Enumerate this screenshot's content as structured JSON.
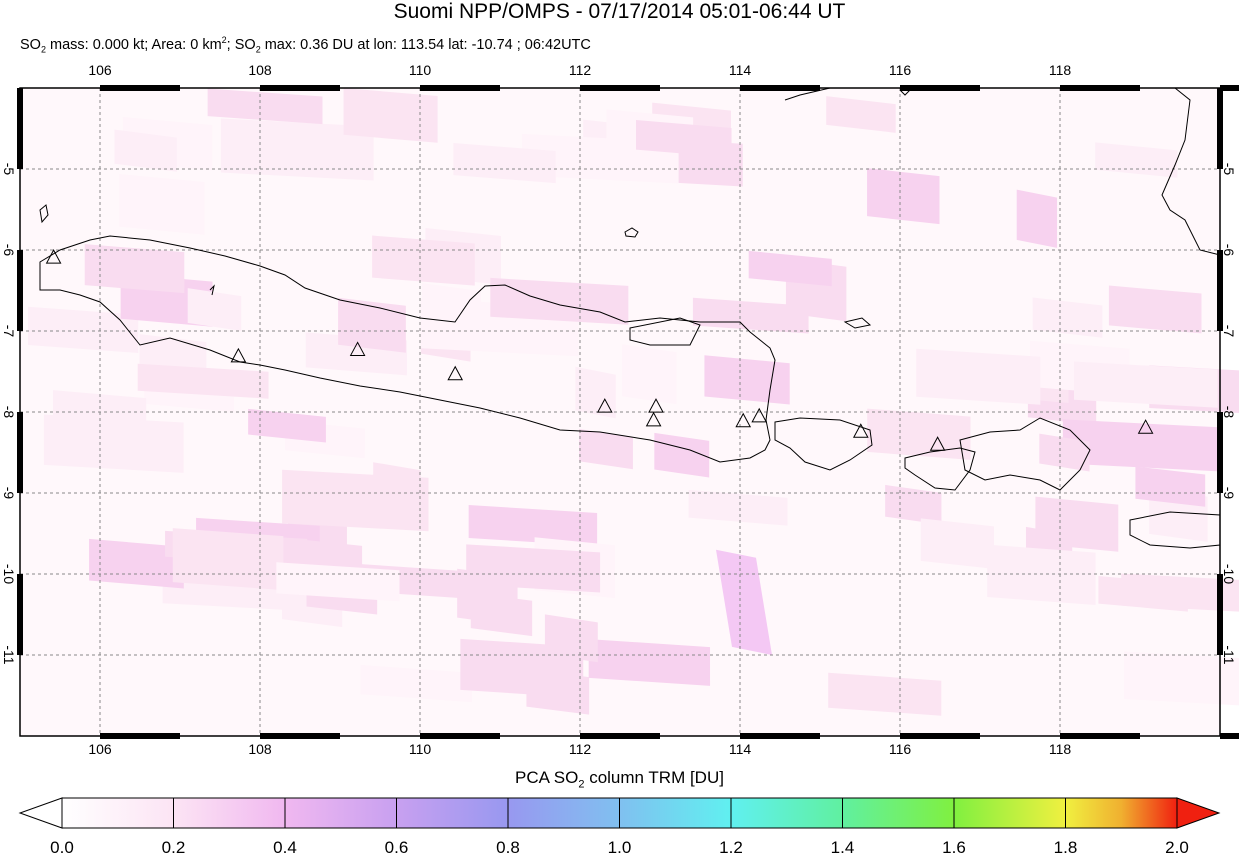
{
  "header": {
    "title": "Suomi NPP/OMPS - 07/17/2014 05:01-06:44 UT",
    "stats": {
      "so2_mass_label": "SO",
      "so2_mass_text": " mass: 0.000 kt; Area: 0 km",
      "area_text": "; SO",
      "max_text": " max: 0.36 DU at lon: 113.54 lat: -10.74 ; 06:42UTC"
    }
  },
  "map": {
    "lon_ticks": [
      "106",
      "108",
      "110",
      "112",
      "114",
      "116",
      "118"
    ],
    "lat_ticks": [
      "-5",
      "-6",
      "-7",
      "-8",
      "-9",
      "-10",
      "-11"
    ],
    "lon_range": [
      105,
      120
    ],
    "lat_range": [
      -12,
      -4
    ],
    "volcanoes": [
      {
        "lon": 105.42,
        "lat": -6.1
      },
      {
        "lon": 107.73,
        "lat": -7.32
      },
      {
        "lon": 109.22,
        "lat": -7.24
      },
      {
        "lon": 110.44,
        "lat": -7.54
      },
      {
        "lon": 112.31,
        "lat": -7.94
      },
      {
        "lon": 112.95,
        "lat": -7.94
      },
      {
        "lon": 112.92,
        "lat": -8.11
      },
      {
        "lon": 114.04,
        "lat": -8.12
      },
      {
        "lon": 114.24,
        "lat": -8.06
      },
      {
        "lon": 115.51,
        "lat": -8.25
      },
      {
        "lon": 116.47,
        "lat": -8.41
      },
      {
        "lon": 119.07,
        "lat": -8.2
      }
    ]
  },
  "colorbar": {
    "title_pre": "PCA SO",
    "title_sub": "2",
    "title_post": " column TRM [DU]",
    "ticks": [
      "0.0",
      "0.2",
      "0.4",
      "0.6",
      "0.8",
      "1.0",
      "1.2",
      "1.4",
      "1.6",
      "1.8",
      "2.0"
    ],
    "range": [
      0,
      2
    ],
    "colors": [
      "#ffffff",
      "#fce4f4",
      "#f0b8f0",
      "#c8a0f0",
      "#9898f0",
      "#80c0f0",
      "#60f0f0",
      "#60f0a0",
      "#80f040",
      "#f0f040",
      "#f0b030",
      "#f06020",
      "#f02010"
    ]
  }
}
